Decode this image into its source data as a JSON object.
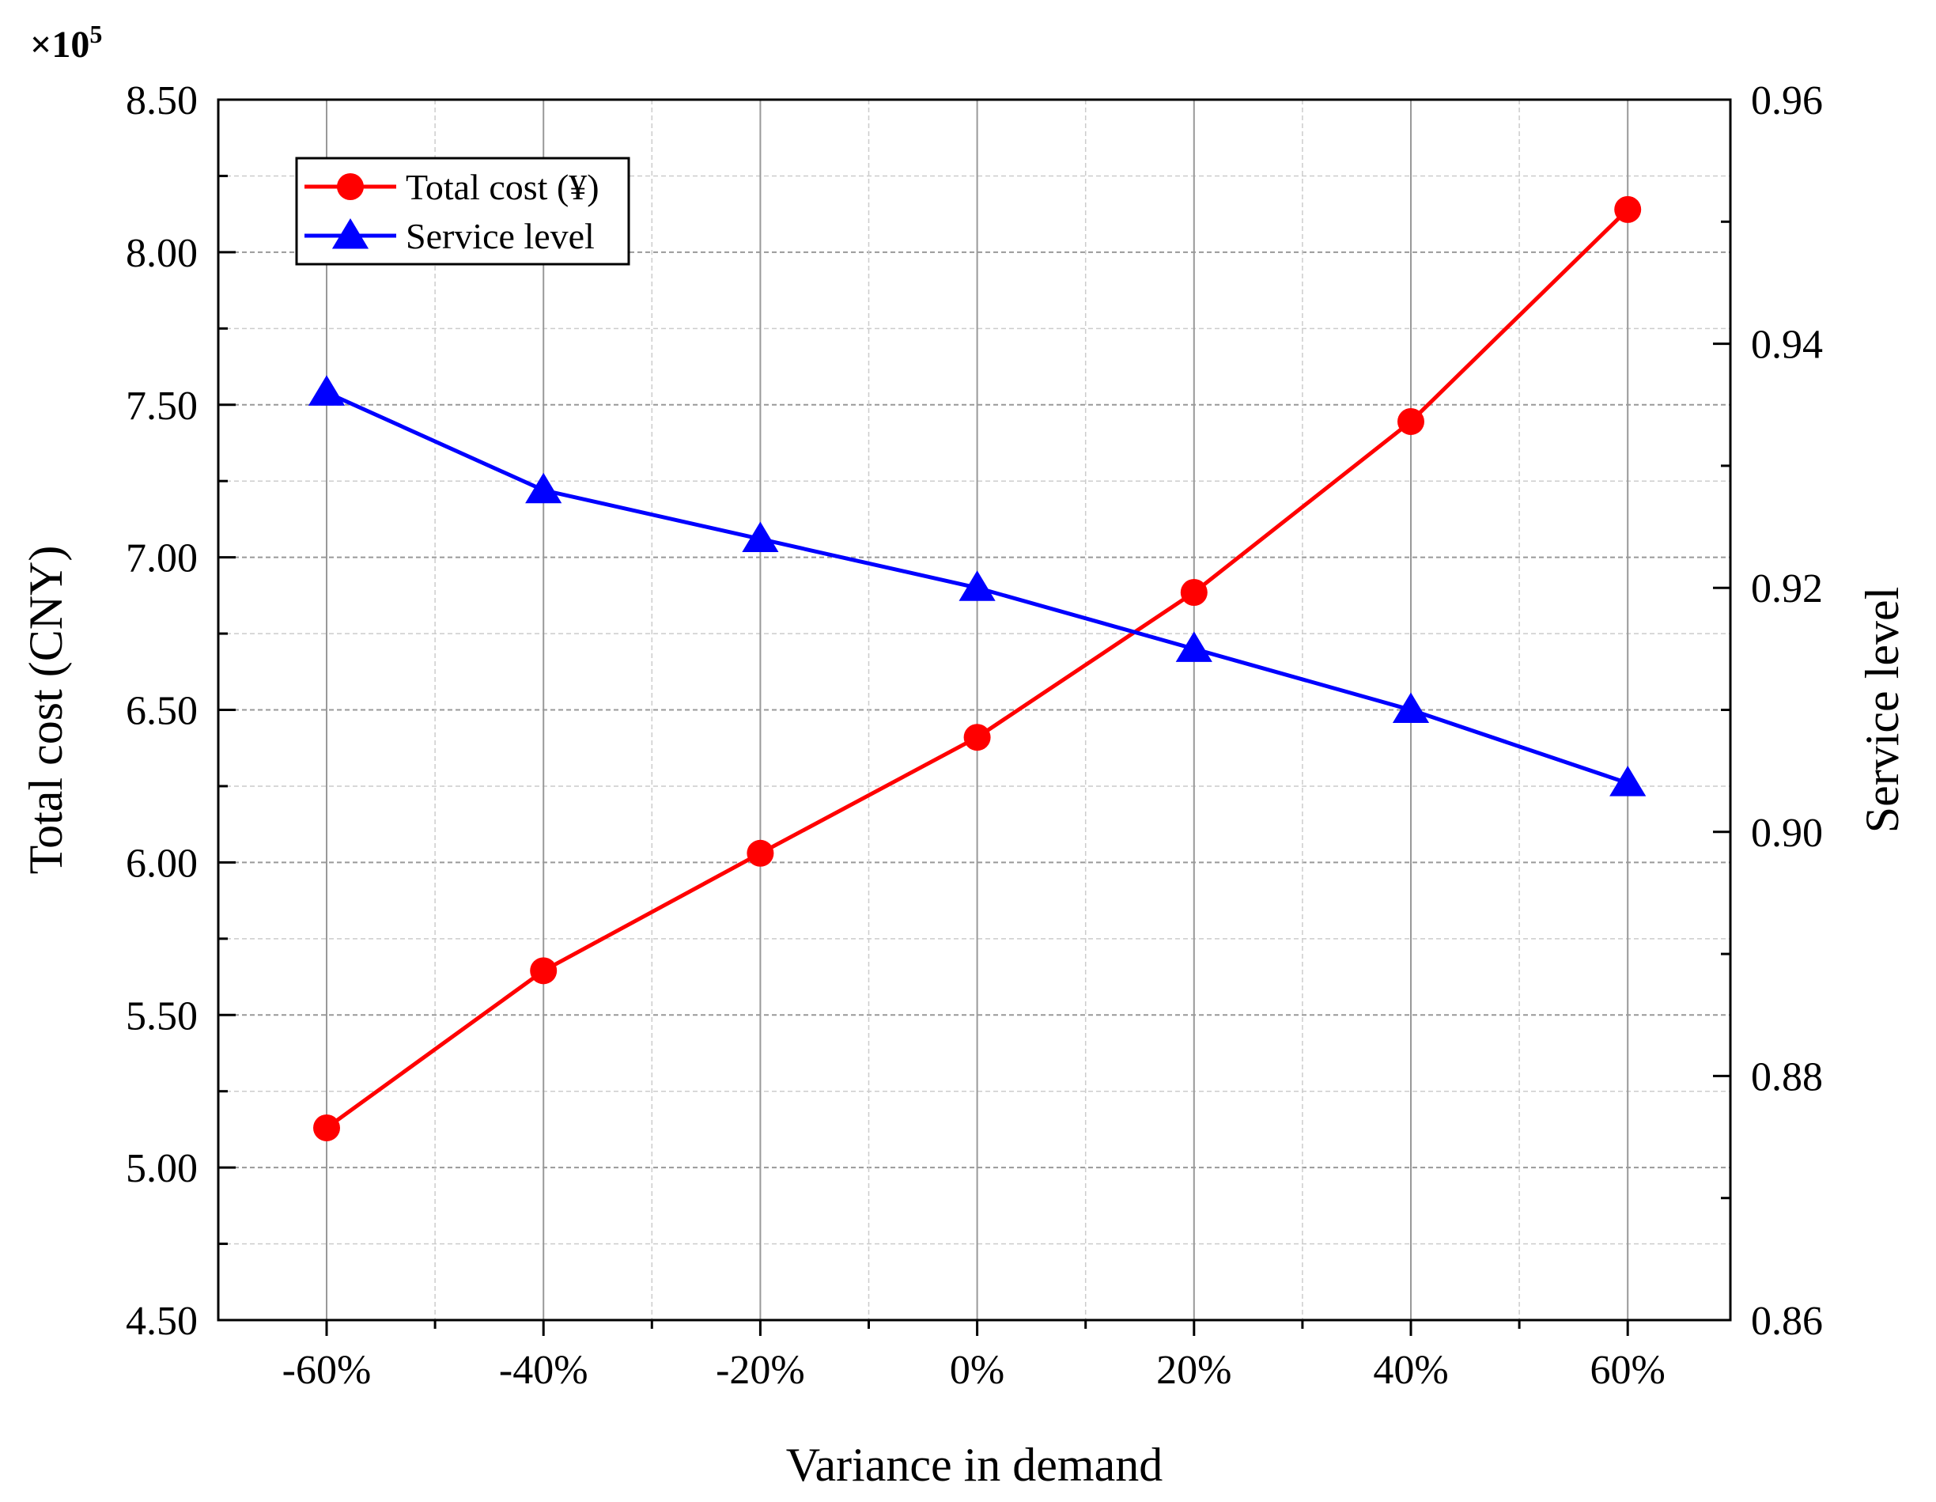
{
  "chart_data": {
    "type": "line",
    "categories": [
      "-60%",
      "-40%",
      "-20%",
      "0%",
      "20%",
      "40%",
      "60%"
    ],
    "xlabel": "Variance in demand",
    "y_left": {
      "label": "Total cost (CNY)",
      "multiplier_label": "×10",
      "multiplier_exponent": "5",
      "range": [
        4.5,
        8.5
      ],
      "major_ticks": [
        4.5,
        5.0,
        5.5,
        6.0,
        6.5,
        7.0,
        7.5,
        8.0,
        8.5
      ],
      "tick_labels": [
        "4.50",
        "5.00",
        "5.50",
        "6.00",
        "6.50",
        "7.00",
        "7.50",
        "8.00",
        "8.50"
      ]
    },
    "y_right": {
      "label": "Service level",
      "range": [
        0.86,
        0.96
      ],
      "major_ticks": [
        0.86,
        0.88,
        0.9,
        0.92,
        0.94,
        0.96
      ],
      "tick_labels": [
        "0.86",
        "0.88",
        "0.90",
        "0.92",
        "0.94",
        "0.96"
      ]
    },
    "series": [
      {
        "name": "Total cost (¥)",
        "axis": "left",
        "marker": "circle",
        "color": "#ff0000",
        "values": [
          5.13,
          5.645,
          6.03,
          6.41,
          6.885,
          7.445,
          8.14
        ]
      },
      {
        "name": "Service level",
        "axis": "right",
        "marker": "triangle",
        "color": "#0000ff",
        "values": [
          0.936,
          0.928,
          0.924,
          0.92,
          0.915,
          0.91,
          0.904
        ]
      }
    ],
    "grid": true,
    "legend_position": "top-left"
  }
}
